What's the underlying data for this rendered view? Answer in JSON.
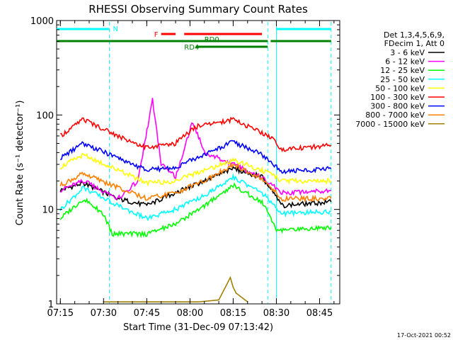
{
  "chart_data": {
    "type": "line",
    "title": "RHESSI Observing Summary Count Rates",
    "xlabel": "Start Time (31-Dec-09 07:13:42)",
    "ylabel": "Count Rate (s⁻¹ detector⁻¹)",
    "y_scale": "log",
    "ylim": [
      1,
      1000
    ],
    "xlim": [
      "07:13:42",
      "08:52:00"
    ],
    "x_ticks": [
      "07:15",
      "07:30",
      "07:45",
      "08:00",
      "08:15",
      "08:30",
      "08:45"
    ],
    "y_ticks": [
      "1",
      "10",
      "100",
      "1000"
    ],
    "legend_header": [
      "Det 1,3,4,5,6,9,",
      "FDecim 1, Att 0"
    ],
    "series": [
      {
        "name": "3 - 6 keV",
        "color": "#000000",
        "values": [
          {
            "t": "07:15",
            "v": 16
          },
          {
            "t": "07:23",
            "v": 19
          },
          {
            "t": "07:35",
            "v": 13
          },
          {
            "t": "07:45",
            "v": 11
          },
          {
            "t": "07:55",
            "v": 15
          },
          {
            "t": "08:05",
            "v": 20
          },
          {
            "t": "08:15",
            "v": 27
          },
          {
            "t": "08:25",
            "v": 22
          },
          {
            "t": "08:32",
            "v": 11
          },
          {
            "t": "08:49",
            "v": 12
          }
        ]
      },
      {
        "name": "6 - 12 keV",
        "color": "#ff00ff",
        "values": [
          {
            "t": "07:15",
            "v": 16
          },
          {
            "t": "07:23",
            "v": 20
          },
          {
            "t": "07:35",
            "v": 13
          },
          {
            "t": "07:42",
            "v": 20
          },
          {
            "t": "07:47",
            "v": 145
          },
          {
            "t": "07:50",
            "v": 30
          },
          {
            "t": "07:55",
            "v": 22
          },
          {
            "t": "08:01",
            "v": 85
          },
          {
            "t": "08:05",
            "v": 40
          },
          {
            "t": "08:15",
            "v": 30
          },
          {
            "t": "08:25",
            "v": 22
          },
          {
            "t": "08:32",
            "v": 15
          },
          {
            "t": "08:49",
            "v": 16
          }
        ]
      },
      {
        "name": "12 - 25 keV",
        "color": "#00ff00",
        "values": [
          {
            "t": "07:15",
            "v": 8
          },
          {
            "t": "07:23",
            "v": 13
          },
          {
            "t": "07:30",
            "v": 9
          },
          {
            "t": "07:33",
            "v": 5.5
          },
          {
            "t": "07:45",
            "v": 5.5
          },
          {
            "t": "07:55",
            "v": 7
          },
          {
            "t": "08:05",
            "v": 11
          },
          {
            "t": "08:15",
            "v": 18
          },
          {
            "t": "08:25",
            "v": 12
          },
          {
            "t": "08:30",
            "v": 6
          },
          {
            "t": "08:49",
            "v": 6.5
          }
        ]
      },
      {
        "name": "25 - 50 keV",
        "color": "#00ffff",
        "values": [
          {
            "t": "07:15",
            "v": 10
          },
          {
            "t": "07:23",
            "v": 17
          },
          {
            "t": "07:35",
            "v": 11
          },
          {
            "t": "07:45",
            "v": 8
          },
          {
            "t": "07:55",
            "v": 10
          },
          {
            "t": "08:05",
            "v": 14
          },
          {
            "t": "08:15",
            "v": 22
          },
          {
            "t": "08:25",
            "v": 15
          },
          {
            "t": "08:32",
            "v": 9
          },
          {
            "t": "08:49",
            "v": 9.5
          }
        ]
      },
      {
        "name": "50 - 100 keV",
        "color": "#ffff00",
        "values": [
          {
            "t": "07:15",
            "v": 28
          },
          {
            "t": "07:23",
            "v": 38
          },
          {
            "t": "07:35",
            "v": 26
          },
          {
            "t": "07:45",
            "v": 19
          },
          {
            "t": "07:55",
            "v": 20
          },
          {
            "t": "08:05",
            "v": 26
          },
          {
            "t": "08:15",
            "v": 33
          },
          {
            "t": "08:25",
            "v": 26
          },
          {
            "t": "08:32",
            "v": 20
          },
          {
            "t": "08:49",
            "v": 20
          }
        ]
      },
      {
        "name": "100 - 300 keV",
        "color": "#ff0000",
        "values": [
          {
            "t": "07:15",
            "v": 60
          },
          {
            "t": "07:23",
            "v": 90
          },
          {
            "t": "07:35",
            "v": 60
          },
          {
            "t": "07:45",
            "v": 45
          },
          {
            "t": "07:55",
            "v": 50
          },
          {
            "t": "08:02",
            "v": 75
          },
          {
            "t": "08:15",
            "v": 90
          },
          {
            "t": "08:27",
            "v": 60
          },
          {
            "t": "08:28",
            "v": 58
          },
          {
            "t": "08:32",
            "v": 43
          },
          {
            "t": "08:49",
            "v": 48
          }
        ]
      },
      {
        "name": "300 - 800 keV",
        "color": "#0000ff",
        "values": [
          {
            "t": "07:15",
            "v": 35
          },
          {
            "t": "07:23",
            "v": 50
          },
          {
            "t": "07:35",
            "v": 35
          },
          {
            "t": "07:45",
            "v": 26
          },
          {
            "t": "07:55",
            "v": 28
          },
          {
            "t": "08:05",
            "v": 38
          },
          {
            "t": "08:15",
            "v": 52
          },
          {
            "t": "08:25",
            "v": 38
          },
          {
            "t": "08:32",
            "v": 25
          },
          {
            "t": "08:49",
            "v": 27
          }
        ]
      },
      {
        "name": "800 - 7000 keV",
        "color": "#ff8000",
        "values": [
          {
            "t": "07:15",
            "v": 18
          },
          {
            "t": "07:23",
            "v": 24
          },
          {
            "t": "07:35",
            "v": 17
          },
          {
            "t": "07:45",
            "v": 13
          },
          {
            "t": "07:55",
            "v": 15
          },
          {
            "t": "08:05",
            "v": 20
          },
          {
            "t": "08:15",
            "v": 30
          },
          {
            "t": "08:25",
            "v": 21
          },
          {
            "t": "08:32",
            "v": 13
          },
          {
            "t": "08:49",
            "v": 13
          }
        ]
      },
      {
        "name": "7000 - 15000 keV",
        "color": "#a08000",
        "values": [
          {
            "t": "07:30",
            "v": 1.05
          },
          {
            "t": "07:45",
            "v": 1.05
          },
          {
            "t": "08:03",
            "v": 1.05
          },
          {
            "t": "08:10",
            "v": 1.1
          },
          {
            "t": "08:14",
            "v": 1.9
          },
          {
            "t": "08:15",
            "v": 1.5
          },
          {
            "t": "08:16",
            "v": 1.3
          },
          {
            "t": "08:20",
            "v": 1.05
          }
        ]
      }
    ],
    "flag_bars": [
      {
        "label": "N",
        "color": "#00ffff",
        "segments": [
          [
            "07:13:42",
            "07:32"
          ],
          [
            "08:30",
            "08:49"
          ]
        ]
      },
      {
        "label": "F",
        "color": "#ff0000",
        "segments": [
          [
            "07:50",
            "07:55"
          ],
          [
            "07:58",
            "08:25"
          ]
        ]
      },
      {
        "label": "RD0",
        "color": "#008000",
        "segments": [
          [
            "07:13:42",
            "08:27"
          ],
          [
            "08:28",
            "08:49"
          ]
        ]
      },
      {
        "label": "RD4",
        "color": "#008000",
        "segments": [
          [
            "08:02",
            "08:27"
          ]
        ]
      }
    ],
    "vertical_markers": [
      {
        "t": "07:32",
        "color": "#00ffff",
        "style": "dashed"
      },
      {
        "t": "08:30",
        "color": "#00ffff",
        "style": "solid"
      },
      {
        "t": "08:27",
        "color": "#00ffff",
        "style": "dashed"
      },
      {
        "t": "08:49",
        "color": "#00ffff",
        "style": "dashed"
      }
    ],
    "grid": false,
    "legend_placement": "right"
  },
  "footer": {
    "timestamp": "17-Oct-2021 00:52"
  }
}
